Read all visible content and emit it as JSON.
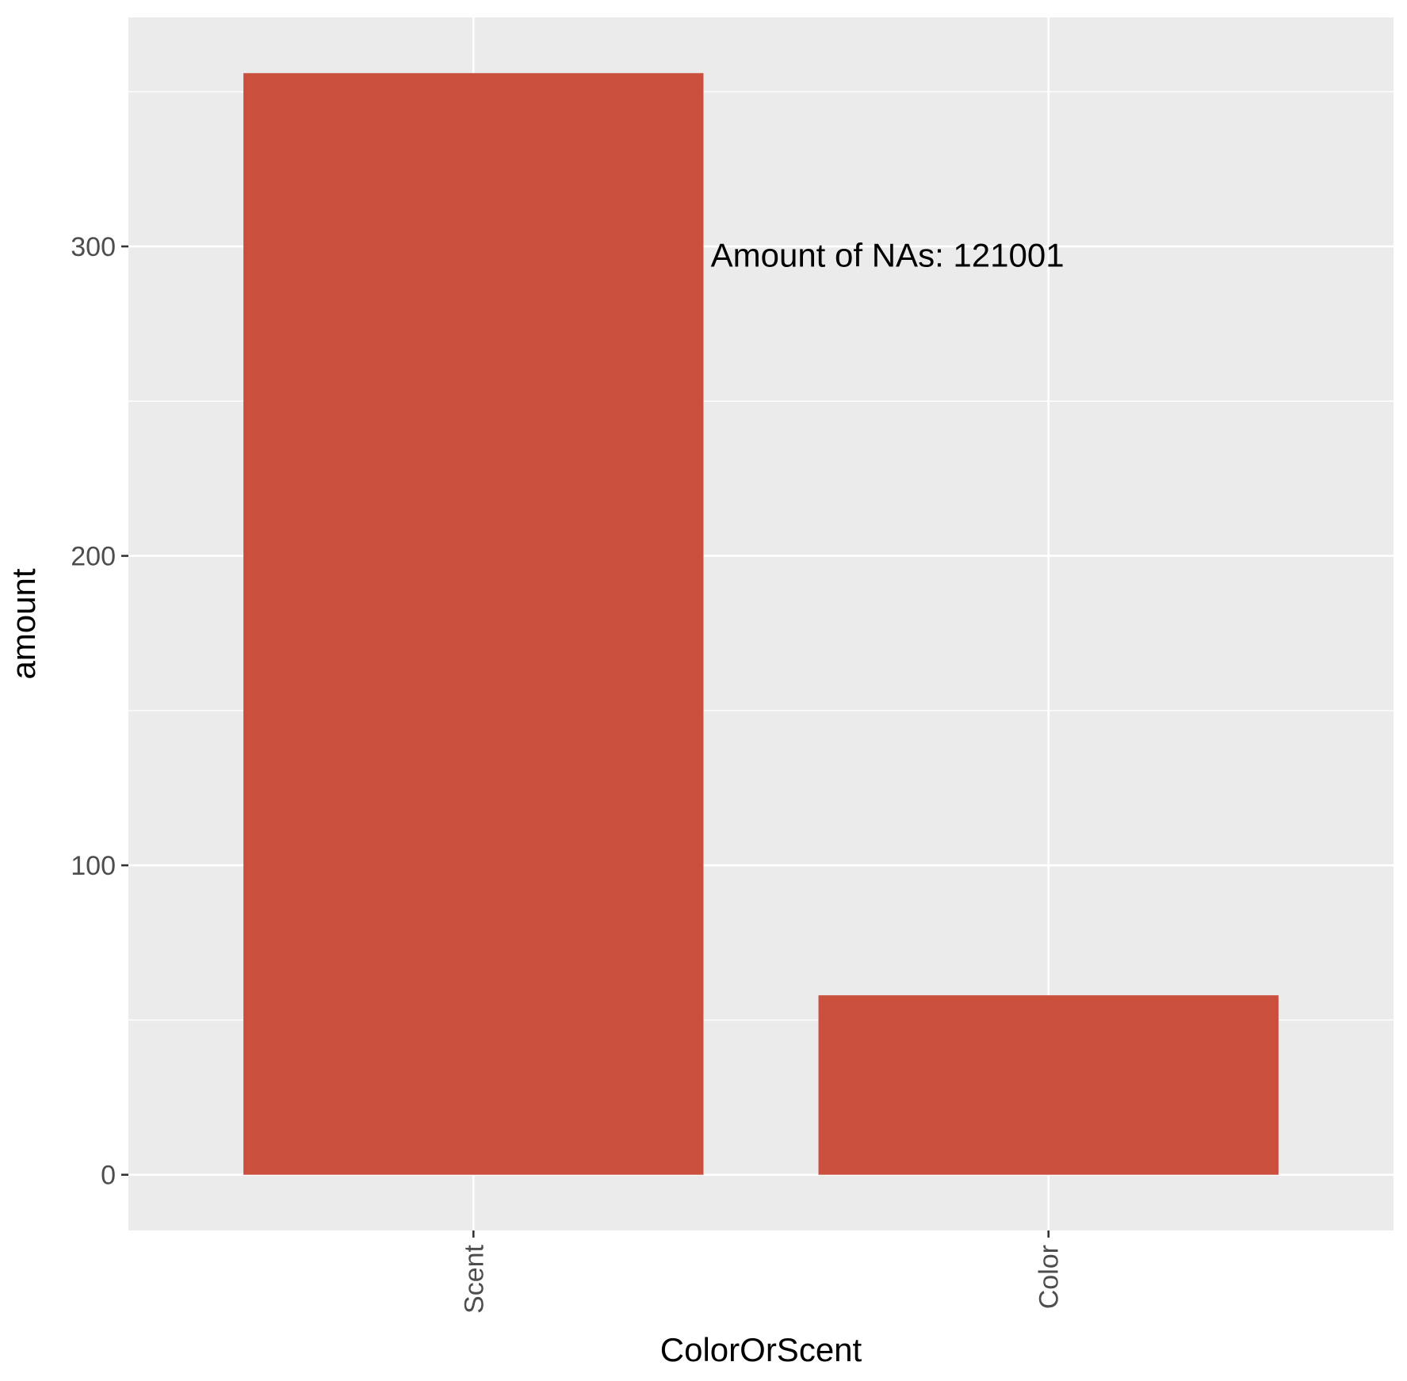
{
  "chart_data": {
    "type": "bar",
    "categories": [
      "Scent",
      "Color"
    ],
    "values": [
      356,
      58
    ],
    "xlabel": "ColorOrScent",
    "ylabel": "amount",
    "ylim": [
      -18,
      374
    ],
    "yticks": [
      0,
      100,
      200,
      300
    ],
    "annotation": {
      "text": "Amount of NAs: 121001",
      "category": "Scent",
      "y": 297
    },
    "grid": true,
    "legend": "none",
    "colors": {
      "bar": "#CB4F3D",
      "panel": "#EBEBEB",
      "grid": "#FFFFFF",
      "tick": "#333333"
    }
  }
}
